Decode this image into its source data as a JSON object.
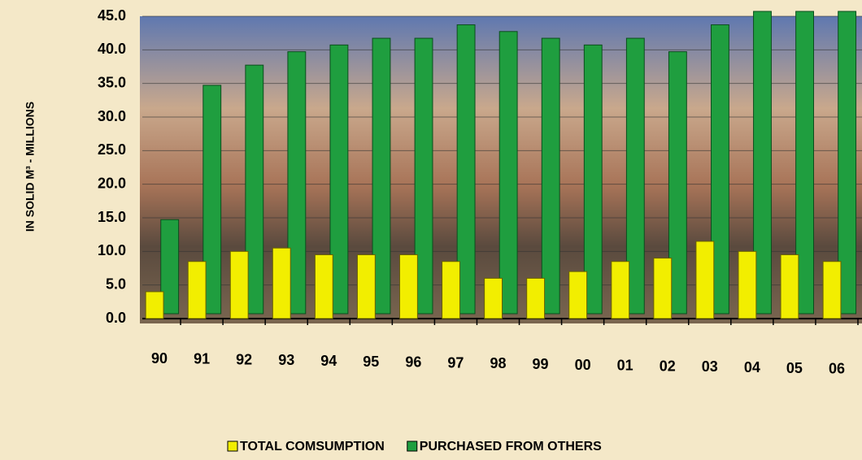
{
  "chart_data": {
    "type": "bar",
    "y_label": "IN SOLID M³ - MILLIONS",
    "categories": [
      "90",
      "91",
      "92",
      "93",
      "94",
      "95",
      "96",
      "97",
      "98",
      "99",
      "00",
      "01",
      "02",
      "03",
      "04",
      "05",
      "06"
    ],
    "series": [
      {
        "name": "TOTAL COMSUMPTION",
        "color": "#f2ee00",
        "values": [
          4.0,
          8.5,
          10.0,
          10.5,
          9.5,
          9.5,
          9.5,
          8.5,
          6.0,
          6.0,
          7.0,
          8.5,
          9.0,
          11.5,
          10.0,
          9.5,
          8.5
        ]
      },
      {
        "name": "PURCHASED FROM OTHERS",
        "color": "#1f9e3f",
        "values": [
          14,
          34,
          37,
          39,
          40,
          41,
          41,
          43,
          42,
          41,
          40,
          41,
          39,
          43,
          45,
          45,
          45
        ]
      }
    ],
    "ylim": [
      0,
      45
    ],
    "yticks": [
      {
        "value": 0,
        "label": "0.0"
      },
      {
        "value": 5,
        "label": "5.0"
      },
      {
        "value": 10,
        "label": "10.0"
      },
      {
        "value": 15,
        "label": "15.0"
      },
      {
        "value": 20,
        "label": "20.0"
      },
      {
        "value": 25,
        "label": "25.0"
      },
      {
        "value": 30,
        "label": "30.0"
      },
      {
        "value": 35,
        "label": "35.0"
      },
      {
        "value": 40,
        "label": "40.0"
      },
      {
        "value": 45,
        "label": "45.0"
      }
    ],
    "grid": true
  }
}
